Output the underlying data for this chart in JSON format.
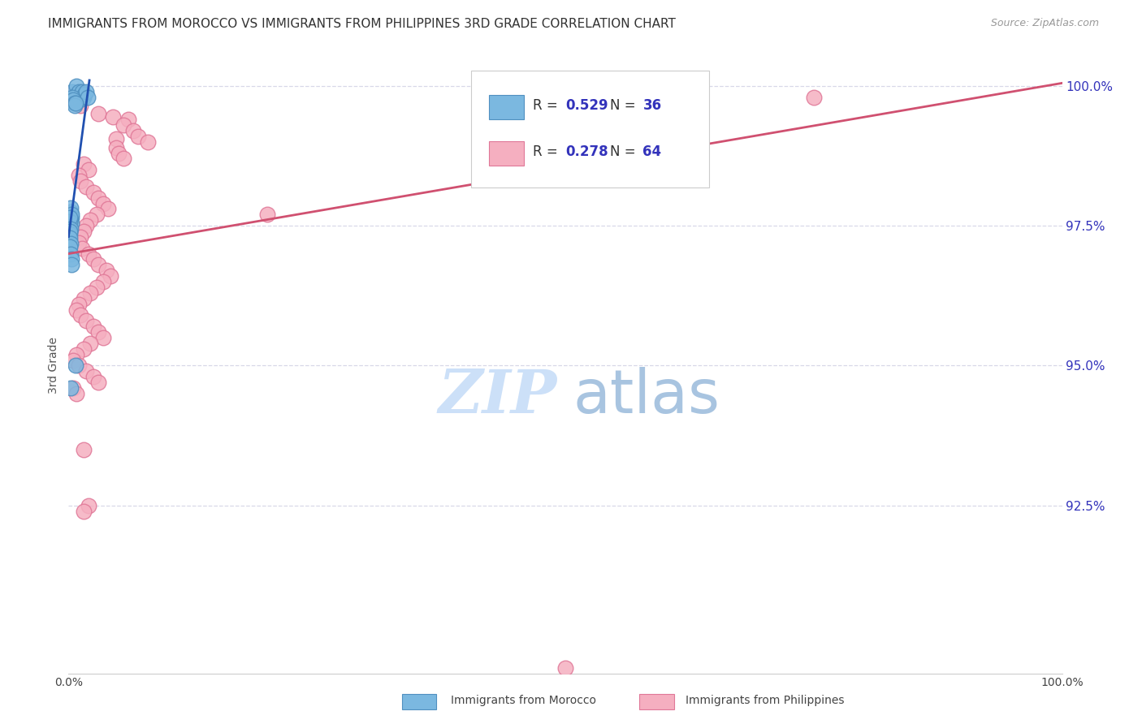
{
  "title": "IMMIGRANTS FROM MOROCCO VS IMMIGRANTS FROM PHILIPPINES 3RD GRADE CORRELATION CHART",
  "source": "Source: ZipAtlas.com",
  "ylabel": "3rd Grade",
  "xlim": [
    0.0,
    1.0
  ],
  "ylim": [
    0.895,
    1.005
  ],
  "yticks": [
    0.925,
    0.95,
    0.975,
    1.0
  ],
  "ytick_labels": [
    "92.5%",
    "95.0%",
    "97.5%",
    "100.0%"
  ],
  "morocco_color": "#7bb8e0",
  "philippines_color": "#f5afc0",
  "morocco_edge": "#5090c0",
  "philippines_edge": "#e07898",
  "morocco_line_color": "#2050b0",
  "philippines_line_color": "#d05070",
  "background_color": "#ffffff",
  "grid_color": "#d8d8e8",
  "tick_color": "#3333bb",
  "watermark_zip_color": "#cce0f8",
  "watermark_atlas_color": "#a8c4e0",
  "morocco_scatter": [
    [
      0.004,
      0.999
    ],
    [
      0.008,
      1.0
    ],
    [
      0.009,
      0.9985
    ],
    [
      0.01,
      0.999
    ],
    [
      0.011,
      0.9975
    ],
    [
      0.013,
      0.9985
    ],
    [
      0.014,
      0.999
    ],
    [
      0.015,
      0.998
    ],
    [
      0.016,
      0.9985
    ],
    [
      0.018,
      0.999
    ],
    [
      0.019,
      0.998
    ],
    [
      0.003,
      0.9975
    ],
    [
      0.004,
      0.998
    ],
    [
      0.005,
      0.9975
    ],
    [
      0.006,
      0.997
    ],
    [
      0.006,
      0.9965
    ],
    [
      0.007,
      0.997
    ],
    [
      0.002,
      0.9775
    ],
    [
      0.002,
      0.9768
    ],
    [
      0.002,
      0.9782
    ],
    [
      0.003,
      0.9765
    ],
    [
      0.003,
      0.9755
    ],
    [
      0.003,
      0.977
    ],
    [
      0.001,
      0.9758
    ],
    [
      0.001,
      0.9765
    ],
    [
      0.002,
      0.9745
    ],
    [
      0.001,
      0.9735
    ],
    [
      0.001,
      0.974
    ],
    [
      0.001,
      0.9728
    ],
    [
      0.002,
      0.9718
    ],
    [
      0.001,
      0.9712
    ],
    [
      0.002,
      0.97
    ],
    [
      0.003,
      0.969
    ],
    [
      0.003,
      0.968
    ],
    [
      0.007,
      0.95
    ],
    [
      0.002,
      0.946
    ]
  ],
  "philippines_scatter": [
    [
      0.003,
      0.9985
    ],
    [
      0.006,
      0.9975
    ],
    [
      0.009,
      0.997
    ],
    [
      0.012,
      0.9965
    ],
    [
      0.03,
      0.995
    ],
    [
      0.045,
      0.9945
    ],
    [
      0.06,
      0.994
    ],
    [
      0.055,
      0.993
    ],
    [
      0.065,
      0.992
    ],
    [
      0.07,
      0.991
    ],
    [
      0.048,
      0.9905
    ],
    [
      0.08,
      0.99
    ],
    [
      0.048,
      0.989
    ],
    [
      0.05,
      0.988
    ],
    [
      0.055,
      0.987
    ],
    [
      0.015,
      0.986
    ],
    [
      0.02,
      0.985
    ],
    [
      0.01,
      0.984
    ],
    [
      0.012,
      0.983
    ],
    [
      0.018,
      0.982
    ],
    [
      0.025,
      0.981
    ],
    [
      0.03,
      0.98
    ],
    [
      0.035,
      0.979
    ],
    [
      0.04,
      0.978
    ],
    [
      0.028,
      0.977
    ],
    [
      0.022,
      0.976
    ],
    [
      0.018,
      0.975
    ],
    [
      0.015,
      0.974
    ],
    [
      0.012,
      0.973
    ],
    [
      0.01,
      0.972
    ],
    [
      0.014,
      0.971
    ],
    [
      0.02,
      0.97
    ],
    [
      0.025,
      0.969
    ],
    [
      0.03,
      0.968
    ],
    [
      0.038,
      0.967
    ],
    [
      0.042,
      0.966
    ],
    [
      0.035,
      0.965
    ],
    [
      0.028,
      0.964
    ],
    [
      0.022,
      0.963
    ],
    [
      0.015,
      0.962
    ],
    [
      0.01,
      0.961
    ],
    [
      0.008,
      0.96
    ],
    [
      0.012,
      0.959
    ],
    [
      0.018,
      0.958
    ],
    [
      0.025,
      0.957
    ],
    [
      0.03,
      0.956
    ],
    [
      0.035,
      0.955
    ],
    [
      0.022,
      0.954
    ],
    [
      0.015,
      0.953
    ],
    [
      0.008,
      0.952
    ],
    [
      0.005,
      0.951
    ],
    [
      0.01,
      0.95
    ],
    [
      0.018,
      0.949
    ],
    [
      0.025,
      0.948
    ],
    [
      0.03,
      0.947
    ],
    [
      0.005,
      0.946
    ],
    [
      0.008,
      0.945
    ],
    [
      0.015,
      0.935
    ],
    [
      0.02,
      0.925
    ],
    [
      0.015,
      0.924
    ],
    [
      0.5,
      0.896
    ],
    [
      0.75,
      0.998
    ],
    [
      0.2,
      0.977
    ]
  ],
  "ph_line_x": [
    0.0,
    1.0
  ],
  "ph_line_y": [
    0.97,
    1.0005
  ],
  "mo_line_x": [
    0.0,
    0.021
  ],
  "mo_line_y": [
    0.973,
    1.001
  ],
  "title_fontsize": 11,
  "source_fontsize": 9
}
